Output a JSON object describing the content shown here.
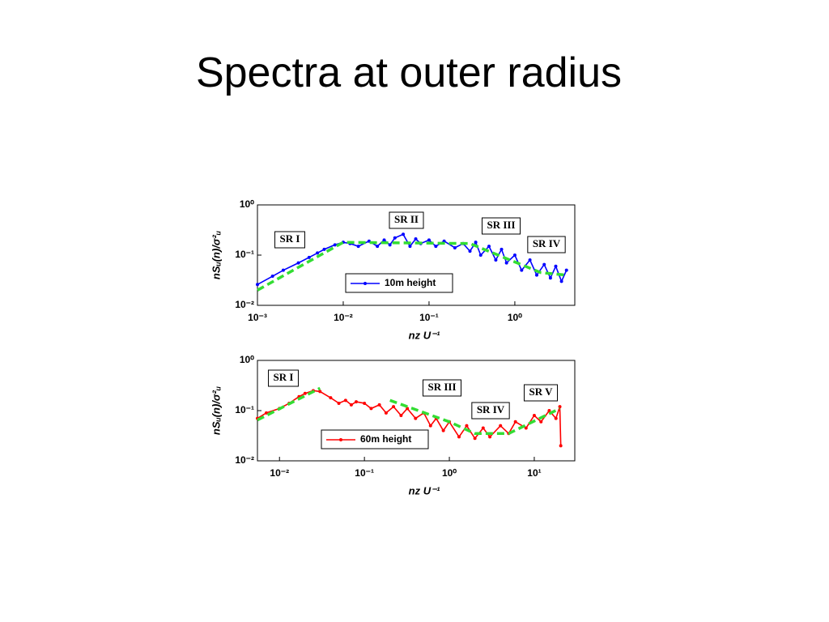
{
  "title": "Spectra at outer radius",
  "chart_data": [
    {
      "type": "line",
      "log_x": true,
      "log_y": true,
      "xlabel": "nz U⁻¹",
      "ylabel": "nSᵤ(n)/σ²ᵤ",
      "xlim": [
        0.001,
        5
      ],
      "ylim": [
        0.01,
        1
      ],
      "xticks": [
        {
          "value": 0.001,
          "label": "10⁻³"
        },
        {
          "value": 0.01,
          "label": "10⁻²"
        },
        {
          "value": 0.1,
          "label": "10⁻¹"
        },
        {
          "value": 1,
          "label": "10⁰"
        }
      ],
      "yticks": [
        {
          "value": 0.01,
          "label": "10⁻²"
        },
        {
          "value": 0.1,
          "label": "10⁻¹"
        },
        {
          "value": 1,
          "label": "10⁰"
        }
      ],
      "annotations": [
        "SR I",
        "SR II",
        "SR III",
        "SR IV"
      ],
      "series": [
        {
          "name": "10m height",
          "color": "#0000ff",
          "marker": true,
          "x": [
            0.001,
            0.0015,
            0.002,
            0.003,
            0.004,
            0.005,
            0.006,
            0.008,
            0.01,
            0.012,
            0.015,
            0.02,
            0.025,
            0.03,
            0.035,
            0.04,
            0.05,
            0.06,
            0.07,
            0.08,
            0.1,
            0.12,
            0.15,
            0.2,
            0.25,
            0.3,
            0.35,
            0.4,
            0.5,
            0.6,
            0.7,
            0.8,
            1.0,
            1.2,
            1.5,
            1.8,
            2.2,
            2.6,
            3,
            3.5,
            4
          ],
          "values": [
            0.026,
            0.038,
            0.05,
            0.07,
            0.09,
            0.11,
            0.13,
            0.16,
            0.18,
            0.17,
            0.15,
            0.19,
            0.15,
            0.2,
            0.16,
            0.22,
            0.26,
            0.15,
            0.21,
            0.17,
            0.2,
            0.15,
            0.19,
            0.14,
            0.17,
            0.12,
            0.18,
            0.1,
            0.15,
            0.08,
            0.13,
            0.07,
            0.1,
            0.05,
            0.08,
            0.04,
            0.065,
            0.035,
            0.06,
            0.03,
            0.05
          ]
        },
        {
          "color": "#33dd33",
          "dash": true,
          "x": [
            0.001,
            0.01,
            0.3,
            2,
            4
          ],
          "values": [
            0.02,
            0.18,
            0.17,
            0.045,
            0.04
          ]
        }
      ]
    },
    {
      "type": "line",
      "log_x": true,
      "log_y": true,
      "xlabel": "nz U⁻¹",
      "ylabel": "nSᵤ(n)/σ²ᵤ",
      "xlim": [
        0.0055,
        30
      ],
      "ylim": [
        0.01,
        1
      ],
      "xticks": [
        {
          "value": 0.01,
          "label": "10⁻²"
        },
        {
          "value": 0.1,
          "label": "10⁻¹"
        },
        {
          "value": 1,
          "label": "10⁰"
        },
        {
          "value": 10,
          "label": "10¹"
        }
      ],
      "yticks": [
        {
          "value": 0.01,
          "label": "10⁻²"
        },
        {
          "value": 0.1,
          "label": "10⁻¹"
        },
        {
          "value": 1,
          "label": "10⁰"
        }
      ],
      "annotations": [
        "SR I",
        "SR III",
        "SR IV",
        "SR V"
      ],
      "series": [
        {
          "name": "60m height",
          "color": "#ff0000",
          "marker": true,
          "x": [
            0.0055,
            0.007,
            0.01,
            0.013,
            0.017,
            0.02,
            0.025,
            0.03,
            0.04,
            0.05,
            0.06,
            0.07,
            0.08,
            0.1,
            0.12,
            0.15,
            0.18,
            0.22,
            0.27,
            0.32,
            0.4,
            0.5,
            0.6,
            0.7,
            0.85,
            1,
            1.3,
            1.6,
            2,
            2.5,
            3,
            4,
            5,
            6,
            8,
            10,
            12,
            15,
            18,
            20,
            20.5
          ],
          "values": [
            0.07,
            0.09,
            0.11,
            0.14,
            0.19,
            0.22,
            0.25,
            0.24,
            0.18,
            0.14,
            0.16,
            0.13,
            0.15,
            0.14,
            0.11,
            0.13,
            0.09,
            0.12,
            0.08,
            0.11,
            0.07,
            0.09,
            0.05,
            0.07,
            0.04,
            0.06,
            0.03,
            0.05,
            0.028,
            0.045,
            0.03,
            0.05,
            0.035,
            0.06,
            0.045,
            0.08,
            0.06,
            0.1,
            0.07,
            0.12,
            0.02
          ]
        },
        {
          "color": "#33dd33",
          "dash": true,
          "x": [
            0.0055,
            0.03,
            null,
            0.2,
            1,
            2,
            5,
            20
          ],
          "values": [
            0.065,
            0.28,
            null,
            0.16,
            0.06,
            0.035,
            0.035,
            0.11
          ]
        }
      ]
    }
  ]
}
